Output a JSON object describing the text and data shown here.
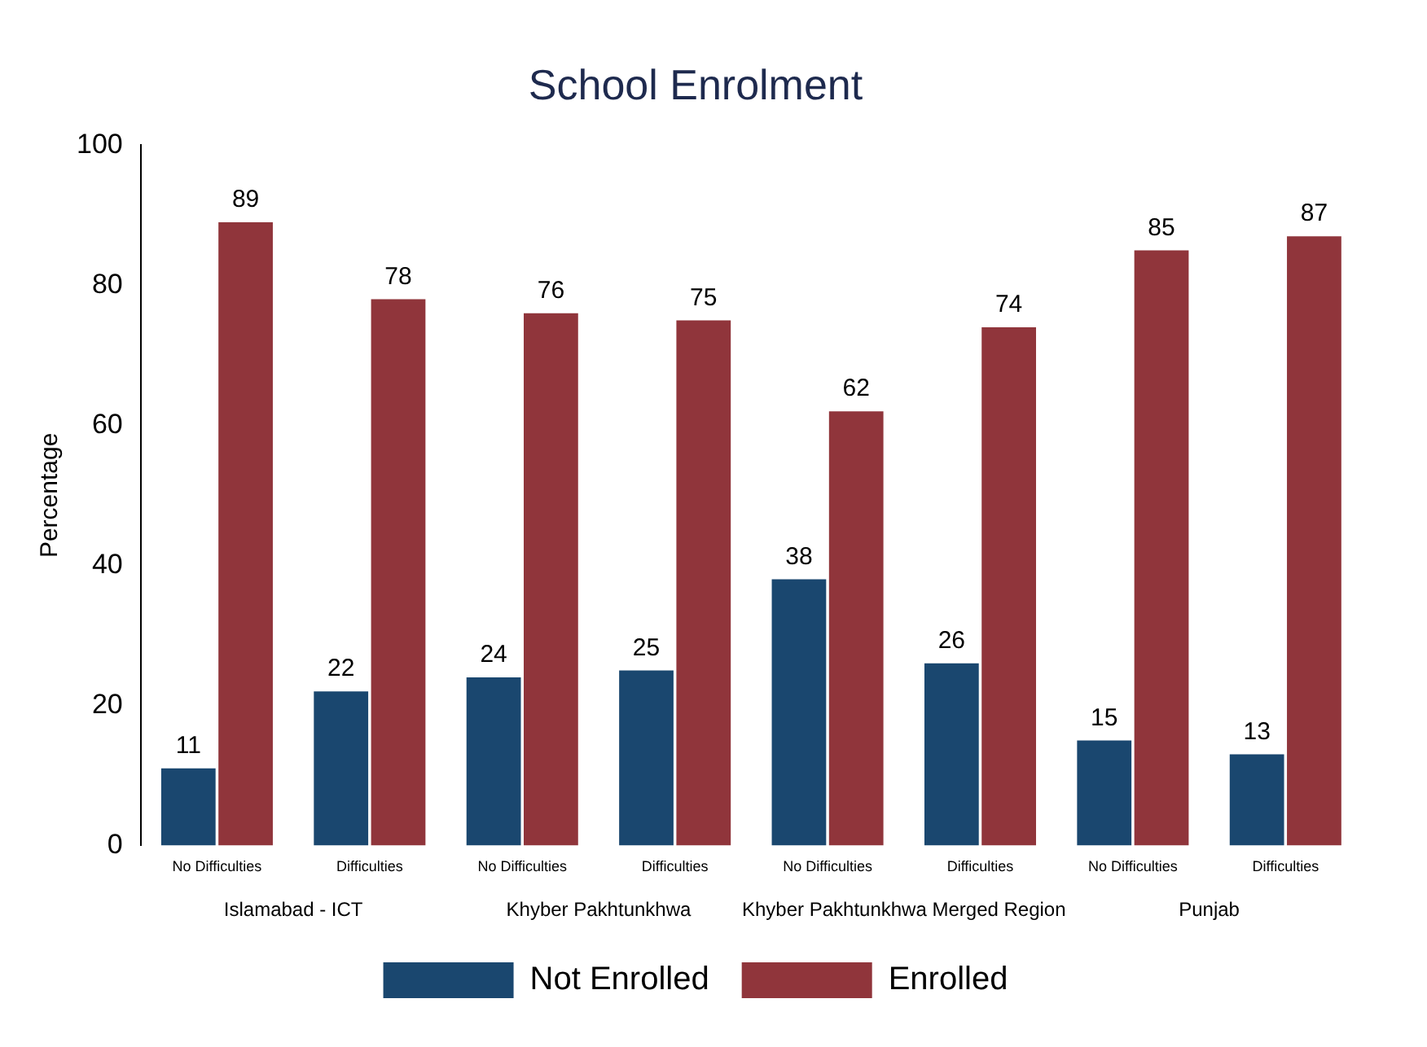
{
  "chart_data": {
    "type": "bar",
    "title": "School Enrolment",
    "ylabel": "Percentage",
    "categories": [
      "No Difficulties",
      "Difficulties",
      "No Difficulties",
      "Difficulties",
      "No Difficulties",
      "Difficulties",
      "No Difficulties",
      "Difficulties"
    ],
    "series": [
      {
        "name": "Not Enrolled",
        "color": "#1a476f",
        "values": [
          11,
          22,
          24,
          25,
          38,
          26,
          15,
          13
        ]
      },
      {
        "name": "Enrolled",
        "color": "#90353b",
        "values": [
          89,
          78,
          76,
          75,
          62,
          74,
          85,
          87
        ]
      }
    ],
    "annotations": [
      "Islamabad - ICT",
      "Khyber Pakhtunkhwa",
      "Khyber Pakhtunkhwa Merged Region",
      "Punjab"
    ],
    "ylim": [
      0,
      100
    ],
    "yticks": [
      0,
      20,
      40,
      60,
      80,
      100
    ],
    "grid": false,
    "legend": "bottom",
    "data_labels": true
  }
}
